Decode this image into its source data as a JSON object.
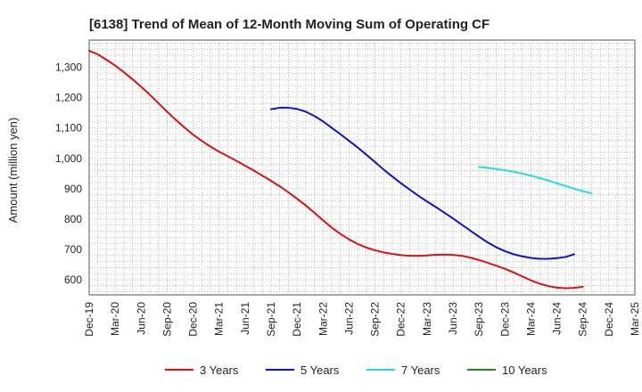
{
  "chart_data": {
    "type": "line",
    "title": "[6138]  Trend of Mean of 12-Month Moving Sum of Operating CF",
    "xlabel": "",
    "ylabel": "Amount (million yen)",
    "ylim": [
      550,
      1390
    ],
    "yticks": [
      600,
      700,
      800,
      900,
      "1,000",
      "1,100",
      "1,200",
      "1,300"
    ],
    "ytick_values": [
      600,
      700,
      800,
      900,
      1000,
      1100,
      1200,
      1300
    ],
    "x_categories": [
      "Dec-19",
      "Mar-20",
      "Jun-20",
      "Sep-20",
      "Dec-20",
      "Mar-21",
      "Jun-21",
      "Sep-21",
      "Dec-21",
      "Mar-22",
      "Jun-22",
      "Sep-22",
      "Dec-22",
      "Mar-23",
      "Jun-23",
      "Sep-23",
      "Dec-23",
      "Mar-24",
      "Jun-24",
      "Sep-24",
      "Dec-24",
      "Mar-25"
    ],
    "grid": true,
    "legend_position": "bottom",
    "series": [
      {
        "name": "3 Years",
        "color": "#dd1111",
        "start_index": 0,
        "values": [
          1355,
          1343,
          1325,
          1306,
          1284,
          1261,
          1236,
          1210,
          1182,
          1154,
          1127,
          1102,
          1078,
          1058,
          1039,
          1022,
          1007,
          992,
          976,
          960,
          943,
          926,
          908,
          888,
          867,
          845,
          821,
          796,
          772,
          751,
          733,
          718,
          706,
          697,
          690,
          685,
          681,
          679,
          679,
          680,
          682,
          683,
          682,
          679,
          673,
          665,
          656,
          646,
          636,
          624,
          611,
          598,
          587,
          579,
          574,
          572,
          573,
          577
        ]
      },
      {
        "name": "5 Years",
        "color": "#1111cc",
        "start_index": 21,
        "values": [
          1162,
          1167,
          1167,
          1163,
          1154,
          1140,
          1122,
          1101,
          1080,
          1058,
          1036,
          1012,
          988,
          963,
          940,
          918,
          897,
          877,
          858,
          840,
          821,
          802,
          782,
          762,
          742,
          723,
          707,
          694,
          684,
          677,
          672,
          669,
          669,
          671,
          675,
          684
        ]
      },
      {
        "name": "7 Years",
        "color": "#22dddd",
        "start_index": 45,
        "values": [
          972,
          969,
          965,
          961,
          956,
          950,
          943,
          935,
          927,
          918,
          909,
          900,
          892,
          885
        ]
      },
      {
        "name": "10 Years",
        "color": "#228822",
        "start_index": 0,
        "values": []
      }
    ]
  }
}
